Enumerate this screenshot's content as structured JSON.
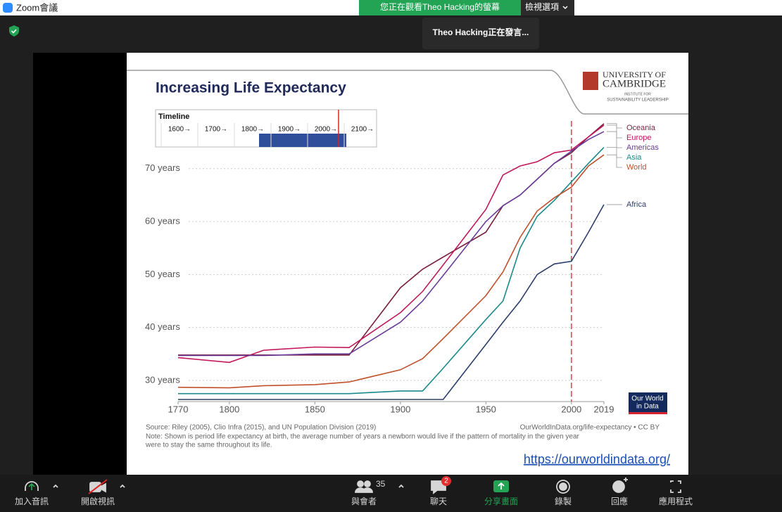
{
  "zoom": {
    "window_title": "Zoom會議",
    "viewing_banner": "您正在觀看Theo  Hacking的螢幕",
    "view_options": "檢視選項",
    "speaker": "Theo  Hacking正在發言...",
    "toolbar": {
      "audio": "加入音訊",
      "video": "開啟視訊",
      "participants": "與會者",
      "participants_count": 35,
      "chat": "聊天",
      "chat_badge": 2,
      "share": "分享畫面",
      "record": "錄製",
      "reactions": "回應",
      "apps": "應用程式"
    }
  },
  "slide": {
    "timeline": {
      "label": "Timeline",
      "ticks": [
        "1600→",
        "1700→",
        "1800→",
        "1900→",
        "2000→",
        "2100→"
      ]
    },
    "logo": {
      "line1": "UNIVERSITY OF",
      "line2": "CAMBRIDGE",
      "line3": "INSTITUTE FOR",
      "line4": "SUSTAINABILITY LEADERSHIP"
    },
    "source": "Source: Riley (2005), Clio Infra (2015), and UN Population Division (2019)",
    "credit": "OurWorldInData.org/life-expectancy • CC BY",
    "note_line1": "Note: Shown is period life expectancy at birth, the average number of years a newborn would live if the pattern of mortality in the given year",
    "note_line2": "were to stay the same throughout its life.",
    "badge_line1": "Our World",
    "badge_line2": "in Data",
    "link": "https://ourworldindata.org/"
  },
  "chart_data": {
    "type": "line",
    "title": "Increasing Life Expectancy",
    "x": [
      1770,
      1800,
      1820,
      1850,
      1870,
      1900,
      1913,
      1925,
      1950,
      1960,
      1970,
      1980,
      1990,
      2000,
      2010,
      2019
    ],
    "series": [
      {
        "name": "Oceania",
        "color": "#7a1f3d",
        "values": [
          34.8,
          34.8,
          34.8,
          34.8,
          34.8,
          47.5,
          51,
          53.3,
          58,
          63,
          65,
          68,
          71,
          73,
          76,
          78.5
        ]
      },
      {
        "name": "Europe",
        "color": "#c2185b",
        "values": [
          34.3,
          33.4,
          35.7,
          36.3,
          36.2,
          42.8,
          46.8,
          51.8,
          62.3,
          68.8,
          70.5,
          71.3,
          73,
          73.5,
          76,
          78.2
        ]
      },
      {
        "name": "Americas",
        "color": "#6a3d9a",
        "values": [
          34.7,
          34.7,
          34.7,
          35,
          35,
          41,
          45,
          49.8,
          60,
          63,
          65,
          68,
          71,
          73.3,
          75.5,
          77
        ]
      },
      {
        "name": "Asia",
        "color": "#1a8a8a",
        "values": [
          27.5,
          27.5,
          27.5,
          27.5,
          27.5,
          28,
          28,
          32.3,
          41.5,
          45,
          55,
          61,
          64,
          67.5,
          71,
          74
        ]
      },
      {
        "name": "World",
        "color": "#c0502a",
        "values": [
          28.7,
          28.6,
          29,
          29.2,
          29.7,
          32,
          34.1,
          37.9,
          46,
          50.5,
          57,
          62,
          64.5,
          66.5,
          70.5,
          72.6
        ]
      },
      {
        "name": "Africa",
        "color": "#2c3e6b",
        "values": [
          26.4,
          26.4,
          26.4,
          26.4,
          26.4,
          26.4,
          26.4,
          26.4,
          36.8,
          41,
          45,
          50,
          52,
          52.5,
          58,
          63.2
        ]
      }
    ],
    "xlim": [
      1770,
      2019
    ],
    "xticks": [
      1770,
      1800,
      1850,
      1900,
      1950,
      2000,
      2019
    ],
    "ylim": [
      26,
      79
    ],
    "yticks": [
      {
        "value": 30,
        "label": "30 years"
      },
      {
        "value": 40,
        "label": "40 years"
      },
      {
        "value": 50,
        "label": "50 years"
      },
      {
        "value": 60,
        "label": "60 years"
      },
      {
        "value": 70,
        "label": "70 years"
      }
    ],
    "grid": true,
    "vline": 2000,
    "vline_color": "#d9232e"
  }
}
